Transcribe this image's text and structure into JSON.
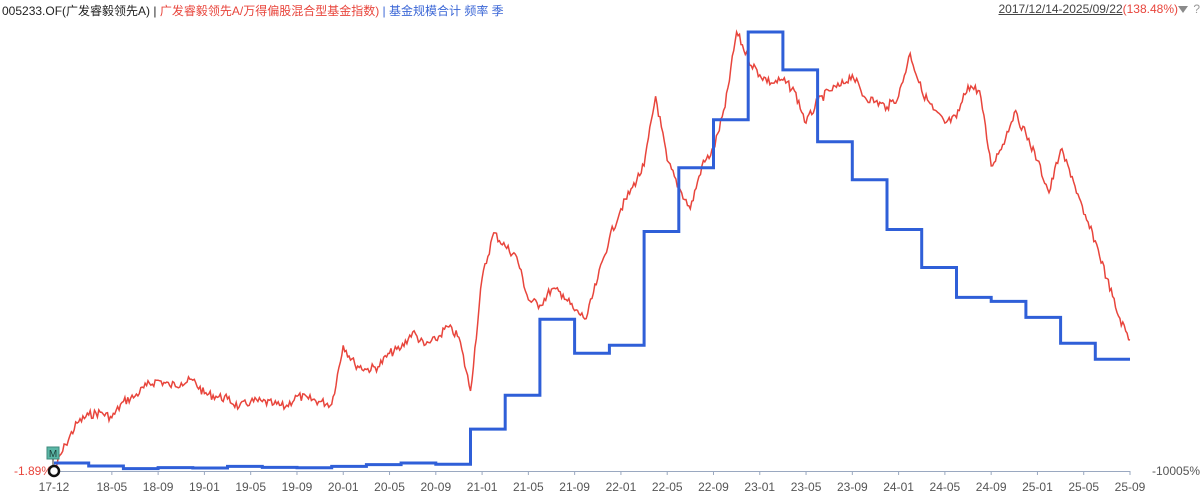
{
  "header": {
    "fund_code": "005233.OF(广发睿毅领先A)",
    "separator": "|",
    "performance_label": "广发睿毅领先A/万得偏股混合型基金指数)",
    "separator2": "|",
    "scale_label": "基金规模合计 频率 季",
    "date_range": "2017/12/14-2025/09/22",
    "period_return": "(138.48%)",
    "help": "?"
  },
  "colors": {
    "performance_line": "#e8453c",
    "scale_line": "#2f5fd8",
    "axis": "#9aa8c0",
    "tick_text": "#555555"
  },
  "chart_data": {
    "type": "line",
    "x_tick_labels": [
      "17-12",
      "18-05",
      "18-09",
      "19-01",
      "19-05",
      "19-09",
      "20-01",
      "20-05",
      "20-09",
      "21-01",
      "21-05",
      "21-09",
      "22-01",
      "22-05",
      "22-09",
      "23-01",
      "23-05",
      "23-09",
      "24-01",
      "24-05",
      "24-09",
      "25-01",
      "25-05",
      "25-09"
    ],
    "y_left_label": "-1.89%",
    "y_right_label": "-10005%",
    "marker": "M",
    "series": [
      {
        "name": "广发睿毅领先A/万得偏股混合型基金指数)",
        "color": "#e8453c",
        "points": [
          [
            "2017-12",
            -1.9
          ],
          [
            "2018-01",
            8
          ],
          [
            "2018-02",
            16
          ],
          [
            "2018-03",
            19
          ],
          [
            "2018-04",
            20
          ],
          [
            "2018-05",
            18
          ],
          [
            "2018-06",
            24
          ],
          [
            "2018-07",
            26
          ],
          [
            "2018-08",
            30
          ],
          [
            "2018-09",
            32
          ],
          [
            "2018-10",
            30
          ],
          [
            "2018-11",
            31
          ],
          [
            "2018-12",
            32
          ],
          [
            "2019-01",
            27
          ],
          [
            "2019-02",
            26
          ],
          [
            "2019-03",
            25
          ],
          [
            "2019-04",
            22
          ],
          [
            "2019-05",
            24
          ],
          [
            "2019-06",
            24
          ],
          [
            "2019-07",
            23
          ],
          [
            "2019-08",
            22
          ],
          [
            "2019-09",
            26
          ],
          [
            "2019-10",
            25
          ],
          [
            "2019-11",
            24
          ],
          [
            "2019-12",
            23
          ],
          [
            "2020-01",
            45
          ],
          [
            "2020-02",
            38
          ],
          [
            "2020-03",
            36
          ],
          [
            "2020-04",
            37
          ],
          [
            "2020-05",
            42
          ],
          [
            "2020-06",
            44
          ],
          [
            "2020-07",
            50
          ],
          [
            "2020-08",
            45
          ],
          [
            "2020-09",
            47
          ],
          [
            "2020-10",
            52
          ],
          [
            "2020-11",
            48
          ],
          [
            "2020-12",
            28
          ],
          [
            "2021-01",
            70
          ],
          [
            "2021-02",
            87
          ],
          [
            "2021-03",
            82
          ],
          [
            "2021-04",
            78
          ],
          [
            "2021-05",
            62
          ],
          [
            "2021-06",
            60
          ],
          [
            "2021-07",
            66
          ],
          [
            "2021-08",
            64
          ],
          [
            "2021-09",
            58
          ],
          [
            "2021-10",
            55
          ],
          [
            "2021-11",
            70
          ],
          [
            "2021-12",
            85
          ],
          [
            "2022-01",
            96
          ],
          [
            "2022-02",
            104
          ],
          [
            "2022-03",
            112
          ],
          [
            "2022-04",
            138
          ],
          [
            "2022-05",
            114
          ],
          [
            "2022-06",
            104
          ],
          [
            "2022-07",
            96
          ],
          [
            "2022-08",
            112
          ],
          [
            "2022-09",
            118
          ],
          [
            "2022-10",
            134
          ],
          [
            "2022-11",
            162
          ],
          [
            "2022-12",
            152
          ],
          [
            "2023-01",
            146
          ],
          [
            "2023-02",
            143
          ],
          [
            "2023-03",
            144
          ],
          [
            "2023-04",
            140
          ],
          [
            "2023-05",
            128
          ],
          [
            "2023-06",
            136
          ],
          [
            "2023-07",
            140
          ],
          [
            "2023-08",
            142
          ],
          [
            "2023-09",
            146
          ],
          [
            "2023-10",
            138
          ],
          [
            "2023-11",
            136
          ],
          [
            "2023-12",
            134
          ],
          [
            "2024-01",
            138
          ],
          [
            "2024-02",
            154
          ],
          [
            "2024-03",
            140
          ],
          [
            "2024-04",
            133
          ],
          [
            "2024-05",
            128
          ],
          [
            "2024-06",
            130
          ],
          [
            "2024-07",
            142
          ],
          [
            "2024-08",
            140
          ],
          [
            "2024-09",
            112
          ],
          [
            "2024-10",
            120
          ],
          [
            "2024-11",
            132
          ],
          [
            "2024-12",
            124
          ],
          [
            "2025-01",
            114
          ],
          [
            "2025-02",
            102
          ],
          [
            "2025-03",
            118
          ],
          [
            "2025-04",
            108
          ],
          [
            "2025-05",
            94
          ],
          [
            "2025-06",
            84
          ],
          [
            "2025-07",
            70
          ],
          [
            "2025-08",
            56
          ],
          [
            "2025-09",
            47
          ]
        ]
      },
      {
        "name": "基金规模合计",
        "color": "#2f5fd8",
        "step": true,
        "points": [
          [
            "2017-12",
            2
          ],
          [
            "2018-03",
            0.5
          ],
          [
            "2018-06",
            -0.8
          ],
          [
            "2018-09",
            -0.3
          ],
          [
            "2018-12",
            -0.5
          ],
          [
            "2019-03",
            0.3
          ],
          [
            "2019-06",
            -0.2
          ],
          [
            "2019-09",
            -0.4
          ],
          [
            "2019-12",
            0.3
          ],
          [
            "2020-03",
            1.2
          ],
          [
            "2020-06",
            2
          ],
          [
            "2020-09",
            1.4
          ],
          [
            "2020-12",
            19
          ],
          [
            "2021-03",
            36
          ],
          [
            "2021-06",
            74
          ],
          [
            "2021-09",
            57
          ],
          [
            "2021-12",
            61
          ],
          [
            "2022-03",
            118
          ],
          [
            "2022-06",
            150
          ],
          [
            "2022-09",
            174
          ],
          [
            "2022-12",
            218
          ],
          [
            "2023-03",
            199
          ],
          [
            "2023-06",
            163
          ],
          [
            "2023-09",
            144
          ],
          [
            "2023-12",
            119
          ],
          [
            "2024-03",
            100
          ],
          [
            "2024-06",
            85
          ],
          [
            "2024-09",
            83
          ],
          [
            "2024-12",
            75
          ],
          [
            "2025-03",
            62
          ],
          [
            "2025-06",
            54
          ]
        ]
      }
    ]
  }
}
